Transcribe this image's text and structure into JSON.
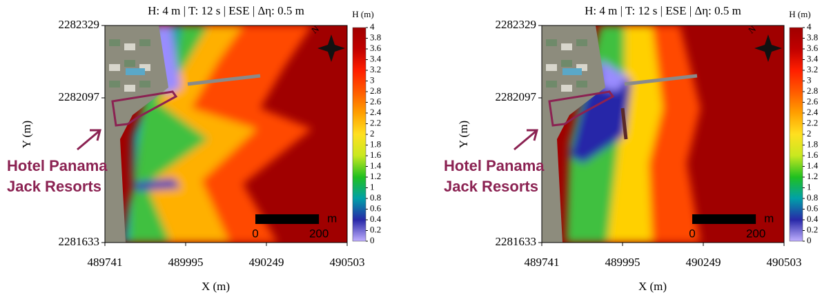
{
  "chart_data": [
    {
      "type": "heatmap",
      "title": "H: 4 m  |  T: 12 s  |  ESE  |  Δη: 0.5 m",
      "xlabel": "X (m)",
      "ylabel": "Y (m)",
      "xlim": [
        489741,
        490503
      ],
      "xticks": [
        489741,
        489995,
        490249,
        490503
      ],
      "ylim": [
        2281633,
        2282329
      ],
      "yticks": [
        2281633,
        2282097,
        2282329
      ],
      "colorbar_label": "H (m)",
      "zlim": [
        0,
        4
      ],
      "zticks": [
        0,
        0.2,
        0.4,
        0.6,
        0.8,
        1,
        1.2,
        1.4,
        1.6,
        1.8,
        2,
        2.2,
        2.4,
        2.6,
        2.8,
        3,
        3.2,
        3.4,
        3.6,
        3.8,
        4
      ],
      "colors": [
        "#c0b0ff",
        "#2828a8",
        "#00a0a8",
        "#20c020",
        "#c8e820",
        "#ffe020",
        "#ffa000",
        "#ff5a00",
        "#ff1e00",
        "#c00000",
        "#a00000"
      ],
      "annotation": [
        "Hotel Panama",
        "Jack Resorts"
      ],
      "scale_ticks": [
        0,
        200
      ],
      "scale_unit": "m"
    },
    {
      "type": "heatmap",
      "title": "H: 4 m  |  T: 12 s  |  ESE  |  Δη: 0.5 m",
      "xlabel": "X (m)",
      "ylabel": "Y (m)",
      "xlim": [
        489741,
        490503
      ],
      "xticks": [
        489741,
        489995,
        490249,
        490503
      ],
      "ylim": [
        2281633,
        2282329
      ],
      "yticks": [
        2281633,
        2282097,
        2282329
      ],
      "colorbar_label": "H (m)",
      "zlim": [
        0,
        4
      ],
      "zticks": [
        0,
        0.2,
        0.4,
        0.6,
        0.8,
        1,
        1.2,
        1.4,
        1.6,
        1.8,
        2,
        2.2,
        2.4,
        2.6,
        2.8,
        3,
        3.2,
        3.4,
        3.6,
        3.8,
        4
      ],
      "colors": [
        "#c0b0ff",
        "#2828a8",
        "#00a0a8",
        "#20c020",
        "#c8e820",
        "#ffe020",
        "#ffa000",
        "#ff5a00",
        "#ff1e00",
        "#c00000",
        "#a00000"
      ],
      "annotation": [
        "Hotel Panama",
        "Jack Resorts"
      ],
      "scale_ticks": [
        0,
        200
      ],
      "scale_unit": "m"
    }
  ]
}
